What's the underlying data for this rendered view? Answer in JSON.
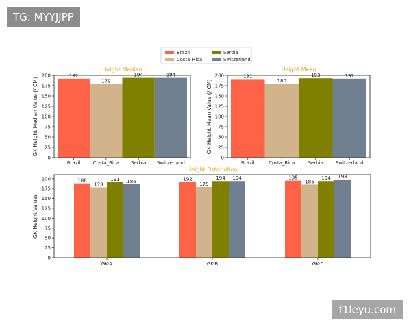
{
  "overlay": {
    "tg_label": "TG: MYYJJPP",
    "watermark": "f1leyu.com"
  },
  "colors": {
    "Brazil": "#ff6347",
    "Costa_Rica": "#d2b48c",
    "Serbia": "#808000",
    "Switzerland": "#708090",
    "title": "#e6a817"
  },
  "legend": {
    "entries": [
      "Brazil",
      "Costa_Rica",
      "Serbia",
      "Switzerland"
    ],
    "placement": "top-center"
  },
  "chart_data": [
    {
      "type": "bar",
      "title": "Height Median",
      "xlabel": "",
      "ylabel": "GK Height Median Value (/ CM)",
      "categories": [
        "Brazil",
        "Costa_Rica",
        "Serbia",
        "Switzerland"
      ],
      "values": [
        192,
        179,
        194,
        194
      ],
      "data_labels": [
        "192",
        "179",
        "194",
        "194"
      ],
      "yticks": [
        "0",
        "25",
        "50",
        "75",
        "100",
        "125",
        "150",
        "175",
        "200"
      ],
      "ylim": [
        0,
        200
      ]
    },
    {
      "type": "bar",
      "title": "Height Mean",
      "xlabel": "",
      "ylabel": "GK Height Mean Value (/ CM)",
      "categories": [
        "Brazil",
        "Costa_Rica",
        "Serbia",
        "Switzerland"
      ],
      "values": [
        191,
        180,
        193,
        192
      ],
      "data_labels": [
        "191",
        "180",
        "193",
        "192"
      ],
      "yticks": [
        "0",
        "25",
        "50",
        "75",
        "100",
        "125",
        "150",
        "175",
        "200"
      ],
      "ylim": [
        0,
        200
      ]
    },
    {
      "type": "bar",
      "title": "Height Dstribution",
      "xlabel": "",
      "ylabel": "GK Height Values",
      "categories": [
        "GK-A",
        "GK-B",
        "GK-C"
      ],
      "series": [
        {
          "name": "Brazil",
          "values": [
            188,
            192,
            195
          ],
          "data_labels": [
            "188",
            "192",
            "195"
          ]
        },
        {
          "name": "Costa_Rica",
          "values": [
            178,
            179,
            185
          ],
          "data_labels": [
            "178",
            "179",
            "185"
          ]
        },
        {
          "name": "Serbia",
          "values": [
            191,
            194,
            194
          ],
          "data_labels": [
            "191",
            "194",
            "194"
          ]
        },
        {
          "name": "Switzerland",
          "values": [
            186,
            194,
            198
          ],
          "data_labels": [
            "186",
            "194",
            "198"
          ]
        }
      ],
      "yticks": [
        "0",
        "25",
        "50",
        "75",
        "100",
        "125",
        "150",
        "175",
        "200"
      ],
      "ylim": [
        0,
        210
      ]
    }
  ]
}
